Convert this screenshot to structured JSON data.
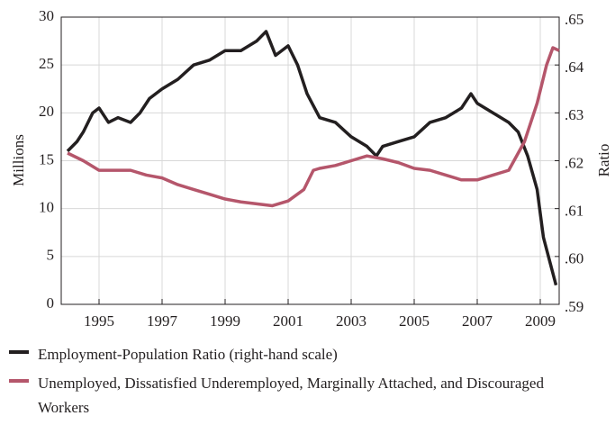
{
  "chart_data": {
    "type": "line",
    "ylabel": "Millions",
    "y2label": "Ratio",
    "xlim": [
      1993.8,
      2009.6
    ],
    "xticks": [
      1995,
      1997,
      1999,
      2001,
      2003,
      2005,
      2007,
      2009
    ],
    "ylim": [
      0,
      30
    ],
    "yticks": [
      0,
      5,
      10,
      15,
      20,
      25,
      30
    ],
    "y2lim": [
      0.59,
      0.65
    ],
    "y2ticks": [
      {
        "value": 0.59,
        "label": ".59"
      },
      {
        "value": 0.6,
        "label": ".60"
      },
      {
        "value": 0.61,
        "label": ".61"
      },
      {
        "value": 0.62,
        "label": ".62"
      },
      {
        "value": 0.63,
        "label": ".63"
      },
      {
        "value": 0.64,
        "label": ".64"
      },
      {
        "value": 0.65,
        "label": ".65"
      }
    ],
    "grid": true,
    "series": [
      {
        "name": "Employment-Population Ratio (right-hand scale)",
        "color": "#231f20",
        "axis": "y2",
        "x": [
          1994.0,
          1994.3,
          1994.5,
          1994.8,
          1995.0,
          1995.3,
          1995.6,
          1996.0,
          1996.3,
          1996.6,
          1997.0,
          1997.5,
          1998.0,
          1998.5,
          1999.0,
          1999.5,
          2000.0,
          2000.3,
          2000.6,
          2001.0,
          2001.3,
          2001.6,
          2002.0,
          2002.5,
          2003.0,
          2003.5,
          2003.8,
          2004.0,
          2004.5,
          2005.0,
          2005.5,
          2006.0,
          2006.5,
          2006.8,
          2007.0,
          2007.5,
          2008.0,
          2008.3,
          2008.6,
          2008.9,
          2009.1,
          2009.3,
          2009.5
        ],
        "values": [
          0.622,
          0.624,
          0.626,
          0.63,
          0.631,
          0.628,
          0.629,
          0.628,
          0.63,
          0.633,
          0.635,
          0.637,
          0.64,
          0.641,
          0.643,
          0.643,
          0.645,
          0.647,
          0.642,
          0.644,
          0.64,
          0.634,
          0.629,
          0.628,
          0.625,
          0.623,
          0.621,
          0.623,
          0.624,
          0.625,
          0.628,
          0.629,
          0.631,
          0.634,
          0.632,
          0.63,
          0.628,
          0.626,
          0.621,
          0.614,
          0.604,
          0.599,
          0.594
        ]
      },
      {
        "name": "Unemployed, Dissatisfied Underemployed, Marginally Attached, and Discouraged Workers",
        "color": "#b5566b",
        "x": [
          1994.0,
          1994.5,
          1995.0,
          1995.5,
          1996.0,
          1996.5,
          1997.0,
          1997.5,
          1998.0,
          1998.5,
          1999.0,
          1999.5,
          2000.0,
          2000.5,
          2001.0,
          2001.5,
          2001.8,
          2002.0,
          2002.5,
          2003.0,
          2003.5,
          2004.0,
          2004.5,
          2005.0,
          2005.5,
          2006.0,
          2006.5,
          2007.0,
          2007.5,
          2008.0,
          2008.5,
          2008.9,
          2009.2,
          2009.4,
          2009.6
        ],
        "values": [
          15.8,
          15,
          14,
          14,
          14,
          13.5,
          13.2,
          12.5,
          12,
          11.5,
          11,
          10.7,
          10.5,
          10.3,
          10.8,
          12,
          14,
          14.2,
          14.5,
          15,
          15.5,
          15.2,
          14.8,
          14.2,
          14,
          13.5,
          13,
          13,
          13.5,
          14,
          17,
          21,
          25,
          26.8,
          26.5
        ]
      }
    ]
  }
}
